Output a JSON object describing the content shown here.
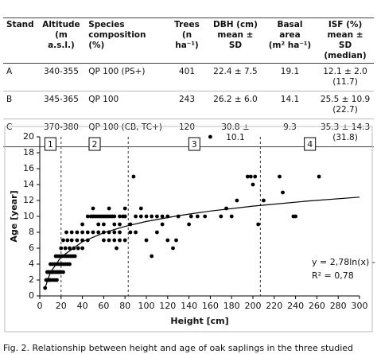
{
  "table": {
    "header": [
      [
        "Stand"
      ],
      [
        "Altitude",
        "(m a.s.l.)"
      ],
      [
        "Species",
        "composition (%)"
      ],
      [
        "Trees",
        "(n ha⁻¹)"
      ],
      [
        "DBH (cm)",
        "mean ± SD"
      ],
      [
        "Basal area",
        "(m² ha⁻¹)"
      ],
      [
        "ISF (%)",
        "mean ± SD",
        "(median)"
      ]
    ],
    "rows": [
      [
        [
          "A"
        ],
        [
          "340-355"
        ],
        [
          "QP 100 (PS+)"
        ],
        [
          "401"
        ],
        [
          "22.4 ± 7.5"
        ],
        [
          "19.1"
        ],
        [
          "12.1 ± 2.0",
          "(11.7)"
        ]
      ],
      [
        [
          "B"
        ],
        [
          "345-365"
        ],
        [
          "QP 100"
        ],
        [
          "243"
        ],
        [
          "26.2 ± 6.0"
        ],
        [
          "14.1"
        ],
        [
          "25.5 ± 10.9",
          "(22.7)"
        ]
      ],
      [
        [
          "C"
        ],
        [
          "370-380"
        ],
        [
          "QP 100 (CB, TC+)"
        ],
        [
          "120"
        ],
        [
          "30.8 ± 10.1"
        ],
        [
          "9.3"
        ],
        [
          "35.3 ± 14.3",
          "(31.8)"
        ]
      ]
    ]
  },
  "chart_data": {
    "type": "scatter",
    "color": "#000000",
    "xlabel": "Height [cm]",
    "ylabel": "Age [year]",
    "xlim": [
      0,
      300
    ],
    "ylim": [
      0,
      20
    ],
    "xticks": [
      0,
      20,
      40,
      60,
      80,
      100,
      120,
      140,
      160,
      180,
      200,
      220,
      240,
      260,
      280,
      300
    ],
    "yticks": [
      0,
      2,
      4,
      6,
      8,
      10,
      12,
      14,
      16,
      18,
      20
    ],
    "x": [
      5,
      6,
      7,
      8,
      9,
      10,
      12,
      14,
      16,
      7,
      8,
      9,
      10,
      11,
      12,
      13,
      14,
      15,
      16,
      17,
      18,
      19,
      20,
      22,
      10,
      12,
      14,
      16,
      18,
      20,
      22,
      24,
      26,
      28,
      15,
      17,
      19,
      21,
      23,
      25,
      27,
      29,
      31,
      33,
      20,
      24,
      28,
      32,
      36,
      40,
      22,
      26,
      30,
      35,
      40,
      45,
      25,
      30,
      35,
      40,
      45,
      50,
      55,
      60,
      65,
      70,
      75,
      40,
      55,
      60,
      70,
      75,
      85,
      45,
      48,
      50,
      52,
      54,
      56,
      58,
      60,
      62,
      64,
      66,
      68,
      70,
      75,
      78,
      80,
      90,
      95,
      100,
      105,
      110,
      115,
      120,
      50,
      65,
      80,
      95,
      60,
      65,
      70,
      75,
      80,
      72,
      85,
      90,
      88,
      100,
      105,
      110,
      115,
      120,
      125,
      128,
      130,
      140,
      142,
      148,
      160,
      155,
      170,
      175,
      185,
      180,
      195,
      198,
      200,
      202,
      205,
      210,
      225,
      228,
      238,
      240,
      262
    ],
    "values": [
      1,
      2,
      2,
      2,
      2,
      2,
      2,
      2,
      2,
      3,
      3,
      3,
      3,
      3,
      3,
      3,
      3,
      3,
      3,
      3,
      3,
      3,
      3,
      3,
      4,
      4,
      4,
      4,
      4,
      4,
      4,
      4,
      4,
      4,
      5,
      5,
      5,
      5,
      5,
      5,
      5,
      5,
      5,
      5,
      6,
      6,
      6,
      6,
      6,
      6,
      7,
      7,
      7,
      7,
      7,
      7,
      8,
      8,
      8,
      8,
      8,
      8,
      8,
      8,
      8,
      8,
      8,
      9,
      9,
      9,
      9,
      9,
      9,
      10,
      10,
      10,
      10,
      10,
      10,
      10,
      10,
      10,
      10,
      10,
      10,
      10,
      10,
      10,
      10,
      10,
      10,
      10,
      10,
      10,
      10,
      10,
      11,
      11,
      11,
      11,
      7,
      7,
      7,
      7,
      7,
      6,
      8,
      8,
      15,
      7,
      5,
      8,
      9,
      7,
      6,
      7,
      10,
      9,
      10,
      10,
      20,
      10,
      10,
      11,
      12,
      10,
      15,
      15,
      14,
      15,
      9,
      12,
      15,
      13,
      10,
      10,
      15
    ],
    "trend_line": {
      "x": [
        5,
        10,
        20,
        40,
        60,
        80,
        100,
        130,
        160,
        200,
        250,
        300
      ],
      "values": [
        1.03,
        2.96,
        4.89,
        6.81,
        7.94,
        8.74,
        9.36,
        10.09,
        10.67,
        11.29,
        11.91,
        12.42
      ]
    },
    "dividers": [
      20,
      83,
      207
    ],
    "regions": [
      "1",
      "2",
      "3",
      "4"
    ],
    "equation": "y = 2,78ln(x) - 3,44",
    "r_squared": "R² = 0,78",
    "caption": "Fig. 2.  Relationship between height and age of oak saplings in the three studied"
  }
}
